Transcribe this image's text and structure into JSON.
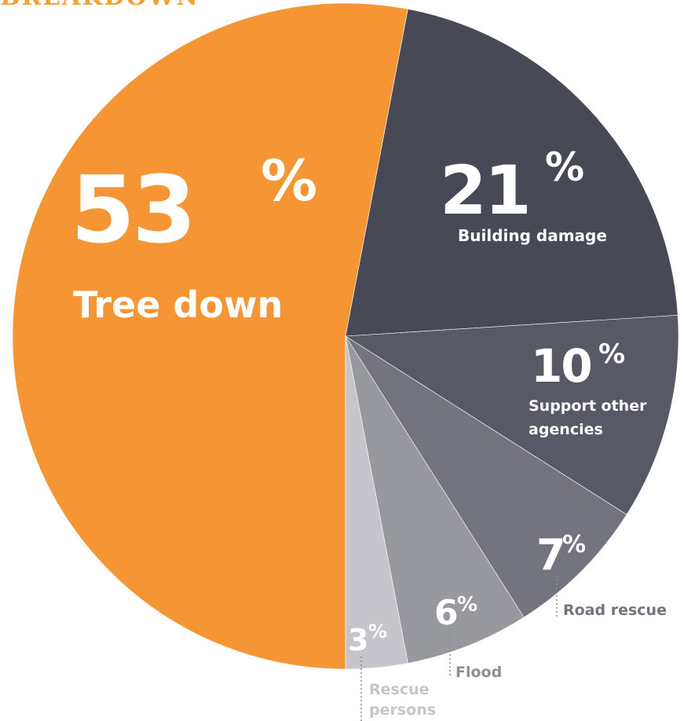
{
  "chart_data": {
    "type": "pie",
    "title_fragment": "BREAKDOWN",
    "slices": [
      {
        "key": "tree",
        "label": "Tree down",
        "value": 53,
        "color": "#f59533",
        "value_text": "53",
        "pct": "%"
      },
      {
        "key": "building",
        "label": "Building damage",
        "value": 21,
        "color": "#474a55",
        "value_text": "21",
        "pct": "%"
      },
      {
        "key": "support",
        "label": "Support other agencies",
        "value": 10,
        "color": "#575a65",
        "value_text": "10",
        "pct": "%"
      },
      {
        "key": "road",
        "label": "Road rescue",
        "value": 7,
        "color": "#74747e",
        "value_text": "7",
        "pct": "%"
      },
      {
        "key": "flood",
        "label": "Flood",
        "value": 6,
        "color": "#98989f",
        "value_text": "6",
        "pct": "%"
      },
      {
        "key": "rescue",
        "label": "Rescue persons",
        "value": 3,
        "color": "#c5c5cb",
        "value_text": "3",
        "pct": "%"
      }
    ]
  }
}
